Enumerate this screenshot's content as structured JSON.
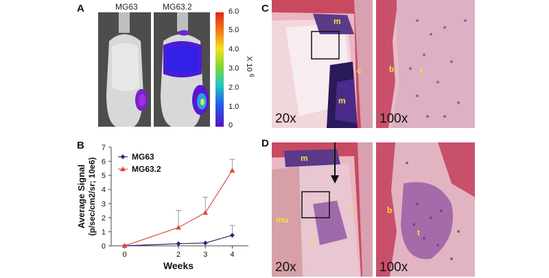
{
  "panel_labels": {
    "a": "A",
    "b": "B",
    "c": "C",
    "d": "D"
  },
  "panel_a": {
    "mouse1_title": "MG63",
    "mouse2_title": "MG63.2",
    "colorbar_ticks": [
      "6.0",
      "5.0",
      "4.0",
      "3.0",
      "2.0",
      "1.0",
      "0"
    ],
    "colorbar_unit": "X 10",
    "colorbar_exponent": "6"
  },
  "chart_data": {
    "type": "line",
    "title": "",
    "xlabel": "Weeks",
    "ylabel": "Average Signal",
    "ylabel2": "(p/sec/cm2/sr; 10e6)",
    "x": [
      0,
      2,
      3,
      4
    ],
    "xticks": [
      "0",
      "2",
      "3",
      "4"
    ],
    "yticks": [
      "0",
      "1",
      "2",
      "3",
      "4",
      "5",
      "6",
      "7"
    ],
    "ylim": [
      0,
      7
    ],
    "xlim": [
      -0.5,
      4.6
    ],
    "legend_position": "top-left",
    "series": [
      {
        "name": "MG63",
        "color": "#2a2a7a",
        "marker": "diamond",
        "values": [
          0,
          0.15,
          0.2,
          0.75
        ],
        "err": [
          0,
          0,
          0,
          0.7
        ]
      },
      {
        "name": "MG63.2",
        "color": "#e04a40",
        "marker": "triangle",
        "values": [
          0,
          1.3,
          2.35,
          5.35
        ],
        "err": [
          0,
          1.2,
          1.1,
          0.8
        ]
      }
    ]
  },
  "panel_c": {
    "mag_left": "20x",
    "mag_right": "100x",
    "labels": {
      "m_top": "m",
      "c": "c",
      "m_bottom": "m",
      "b": "b",
      "t": "t"
    }
  },
  "panel_d": {
    "mag_left": "20x",
    "mag_right": "100x",
    "labels": {
      "m": "m",
      "mu": "mu",
      "c_right": "c",
      "c_bottom": "c",
      "b": "b",
      "t": "t"
    }
  },
  "colors": {
    "tissue_pink": "#d9808e",
    "tissue_red": "#c74a5e",
    "marrow_purple": "#3a1d6a",
    "label_yellow": "#f4e23a"
  }
}
